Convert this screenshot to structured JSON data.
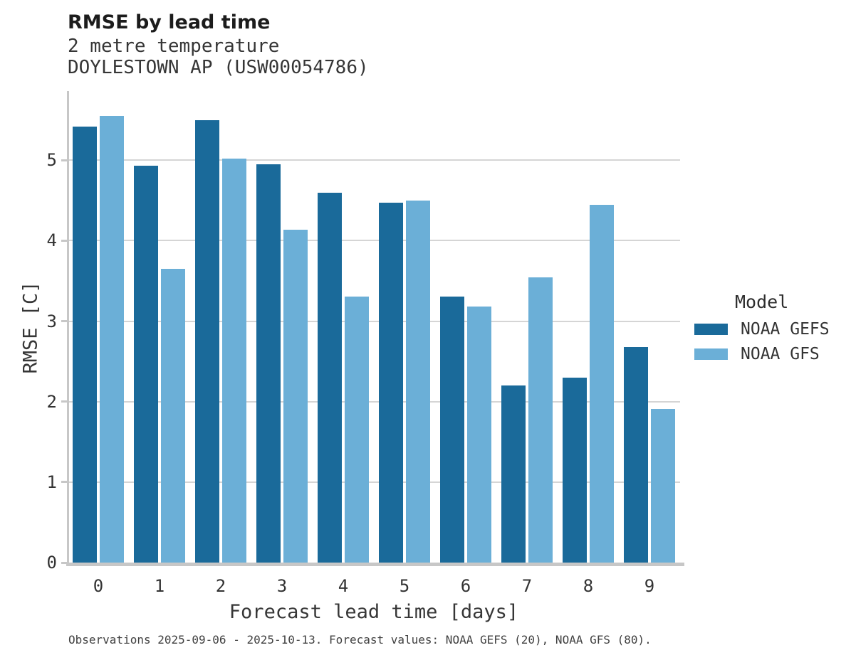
{
  "chart_data": {
    "type": "bar",
    "title": "RMSE by lead time",
    "subtitle": [
      "2 metre temperature",
      "DOYLESTOWN AP (USW00054786)"
    ],
    "categories": [
      "0",
      "1",
      "2",
      "3",
      "4",
      "5",
      "6",
      "7",
      "8",
      "9"
    ],
    "series": [
      {
        "name": "NOAA GEFS",
        "color": "#1a6a9a",
        "values": [
          5.42,
          4.93,
          5.5,
          4.95,
          4.6,
          4.47,
          3.31,
          2.2,
          2.3,
          2.68
        ]
      },
      {
        "name": "NOAA GFS",
        "color": "#6bafd7",
        "values": [
          5.55,
          3.65,
          5.02,
          4.14,
          3.31,
          4.5,
          3.18,
          3.54,
          4.45,
          1.91
        ]
      }
    ],
    "xlabel": "Forecast lead time [days]",
    "ylabel": "RMSE [C]",
    "ylim": [
      0,
      5.86
    ],
    "yticks": [
      0,
      1,
      2,
      3,
      4,
      5
    ],
    "grid": true,
    "legend_title": "Model",
    "legend_position": "right-center"
  },
  "footnote": "Observations 2025-09-06 - 2025-10-13. Forecast values: NOAA GEFS (20), NOAA GFS (80).",
  "colors": {
    "background": "#ffffff",
    "grid": "#d5d5d5",
    "axis": "#c7c7c7",
    "gefs": "#1a6a9a",
    "gfs": "#6bafd7"
  }
}
